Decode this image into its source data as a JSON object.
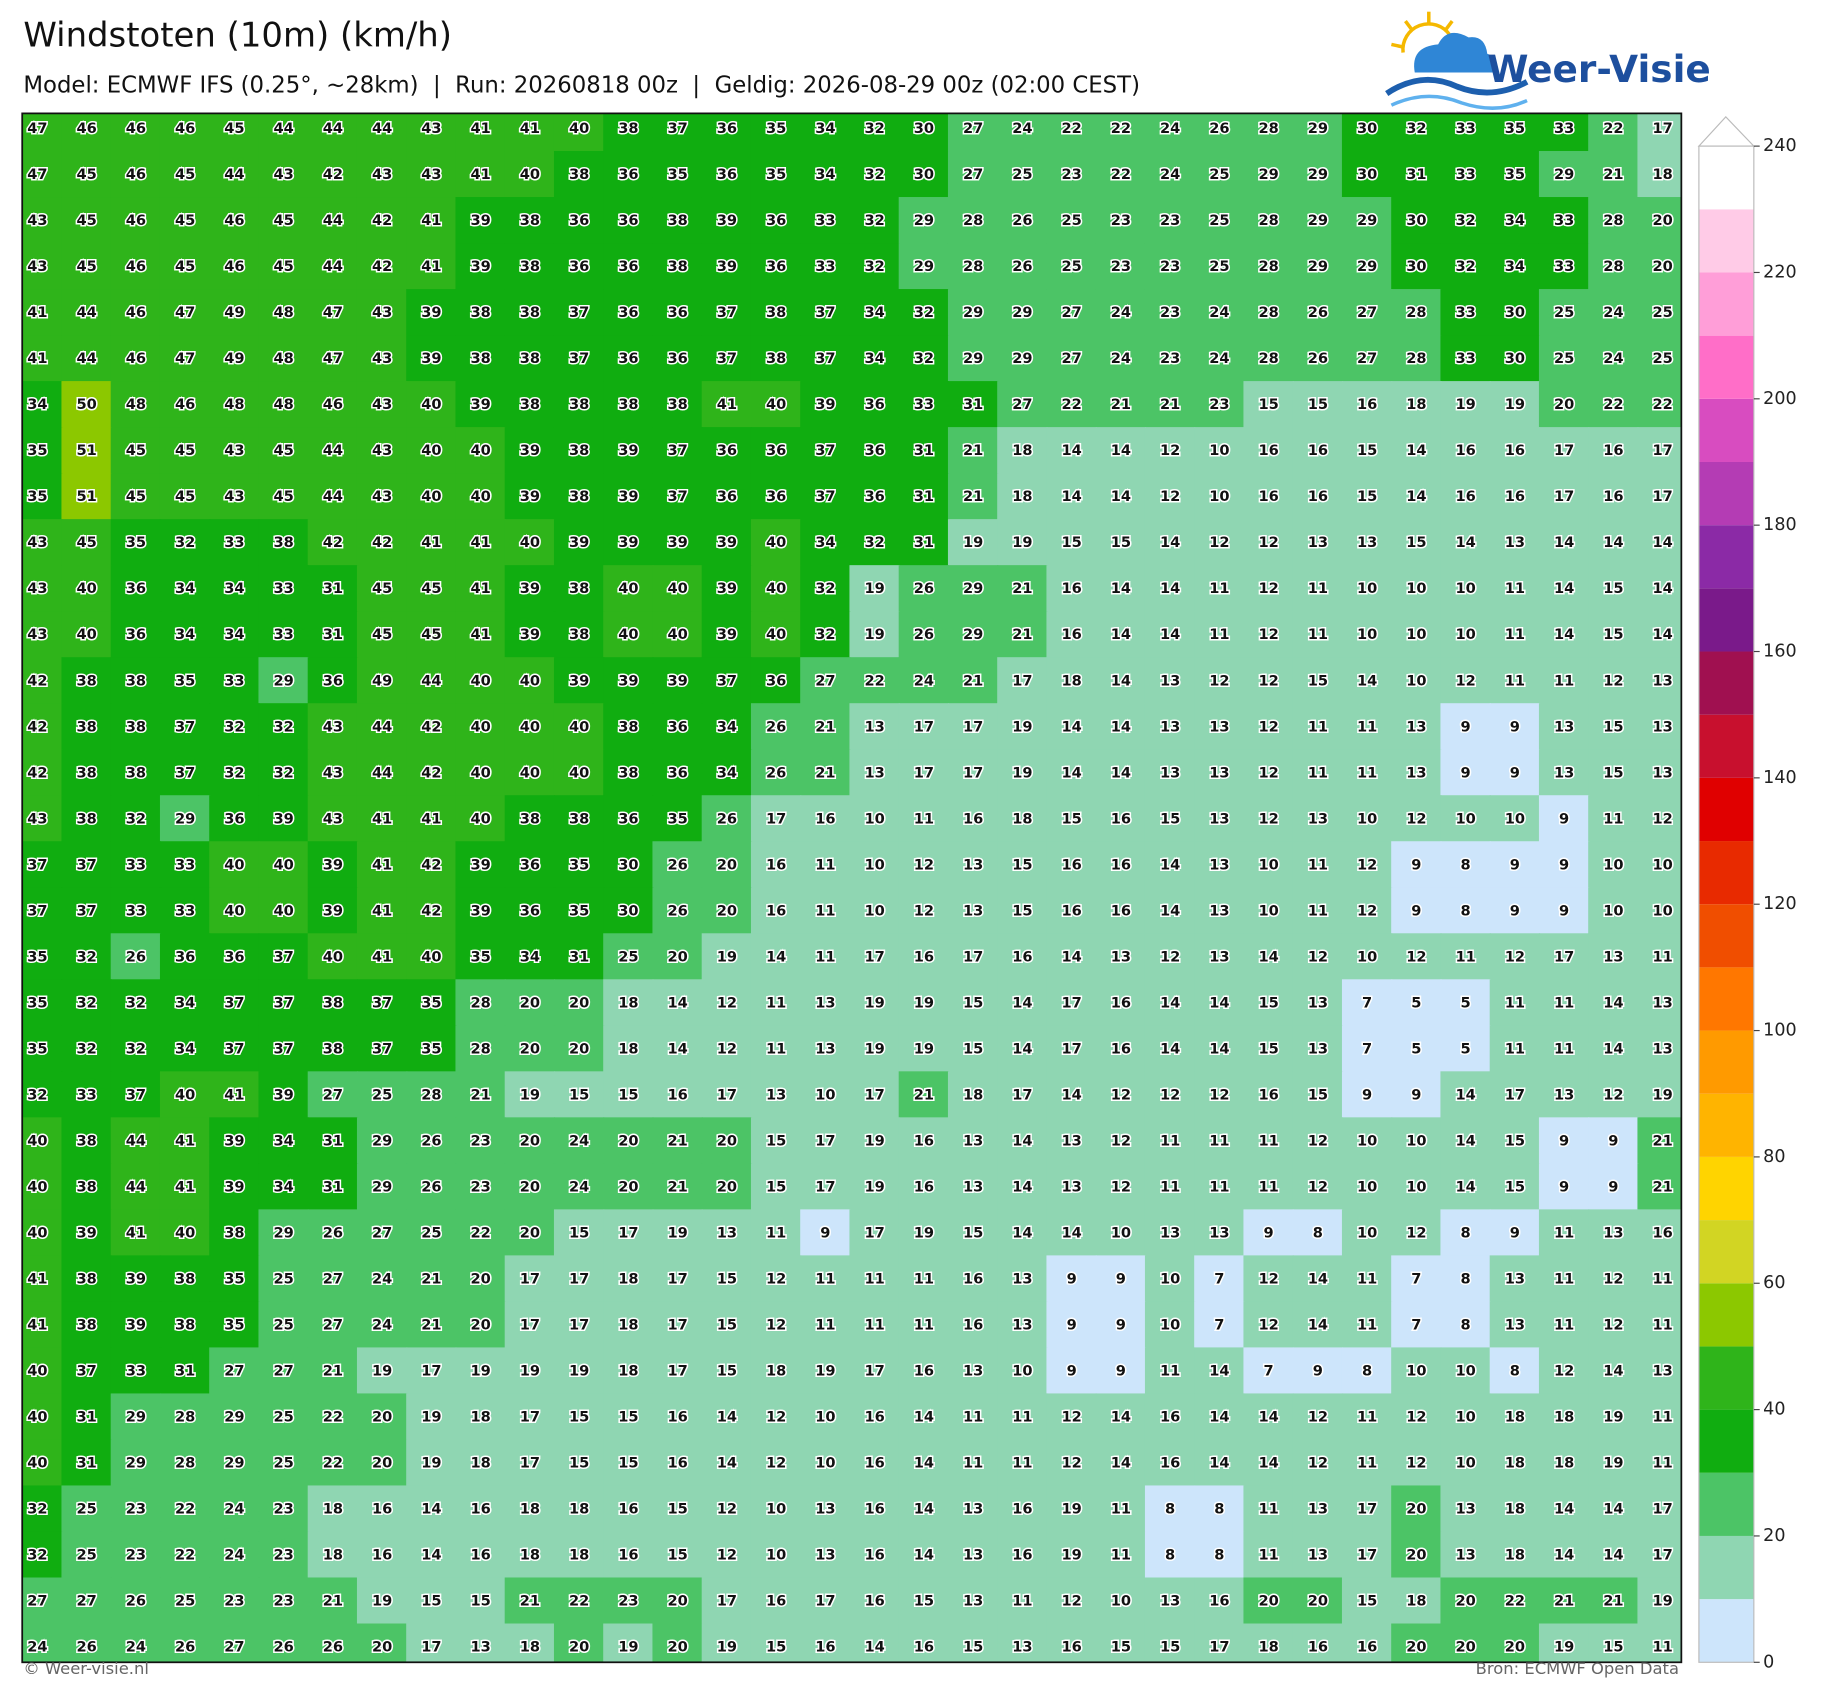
{
  "header": {
    "title": "Windstoten (10m) (km/h)",
    "subtitle": "Model: ECMWF IFS (0.25°, ~28km)  |  Run: 20260818 00z  |  Geldig: 2026-08-29 00z (02:00 CEST)"
  },
  "logo": {
    "text": "Weer-Visie"
  },
  "grid": {
    "rows": [
      [
        47,
        46,
        46,
        46,
        45,
        44,
        44,
        44,
        43,
        41,
        41,
        40,
        38,
        37,
        36,
        35,
        34,
        32,
        30,
        27,
        24,
        22,
        22,
        24,
        26,
        28,
        29,
        30,
        32,
        33,
        35,
        33,
        22,
        17
      ],
      [
        47,
        45,
        46,
        45,
        44,
        43,
        42,
        43,
        43,
        41,
        40,
        38,
        36,
        35,
        36,
        35,
        34,
        32,
        30,
        27,
        25,
        23,
        22,
        24,
        25,
        29,
        29,
        30,
        31,
        33,
        35,
        29,
        21,
        18
      ],
      [
        43,
        45,
        46,
        45,
        46,
        45,
        44,
        42,
        41,
        39,
        38,
        36,
        36,
        38,
        39,
        36,
        33,
        32,
        29,
        28,
        26,
        25,
        23,
        23,
        25,
        28,
        29,
        29,
        30,
        32,
        34,
        33,
        28,
        20
      ],
      [
        43,
        45,
        46,
        45,
        46,
        45,
        44,
        42,
        41,
        39,
        38,
        36,
        36,
        38,
        39,
        36,
        33,
        32,
        29,
        28,
        26,
        25,
        23,
        23,
        25,
        28,
        29,
        29,
        30,
        32,
        34,
        33,
        28,
        20
      ],
      [
        41,
        44,
        46,
        47,
        49,
        48,
        47,
        43,
        39,
        38,
        38,
        37,
        36,
        36,
        37,
        38,
        37,
        34,
        32,
        29,
        29,
        27,
        24,
        23,
        24,
        28,
        26,
        27,
        28,
        33,
        30,
        25,
        24,
        25
      ],
      [
        41,
        44,
        46,
        47,
        49,
        48,
        47,
        43,
        39,
        38,
        38,
        37,
        36,
        36,
        37,
        38,
        37,
        34,
        32,
        29,
        29,
        27,
        24,
        23,
        24,
        28,
        26,
        27,
        28,
        33,
        30,
        25,
        24,
        25
      ],
      [
        34,
        50,
        48,
        46,
        48,
        48,
        46,
        43,
        40,
        39,
        38,
        38,
        38,
        38,
        41,
        40,
        39,
        36,
        33,
        31,
        27,
        22,
        21,
        21,
        23,
        15,
        15,
        16,
        18,
        19,
        19,
        20,
        22,
        22
      ],
      [
        35,
        51,
        45,
        45,
        43,
        45,
        44,
        43,
        40,
        40,
        39,
        38,
        39,
        37,
        36,
        36,
        37,
        36,
        31,
        21,
        18,
        14,
        14,
        12,
        10,
        16,
        16,
        15,
        14,
        16,
        16,
        17,
        16,
        17
      ],
      [
        35,
        51,
        45,
        45,
        43,
        45,
        44,
        43,
        40,
        40,
        39,
        38,
        39,
        37,
        36,
        36,
        37,
        36,
        31,
        21,
        18,
        14,
        14,
        12,
        10,
        16,
        16,
        15,
        14,
        16,
        16,
        17,
        16,
        17
      ],
      [
        43,
        45,
        35,
        32,
        33,
        38,
        42,
        42,
        41,
        41,
        40,
        39,
        39,
        39,
        39,
        40,
        34,
        32,
        31,
        19,
        19,
        15,
        15,
        14,
        12,
        12,
        13,
        13,
        15,
        14,
        13,
        14,
        14,
        14
      ],
      [
        43,
        40,
        36,
        34,
        34,
        33,
        31,
        45,
        45,
        41,
        39,
        38,
        40,
        40,
        39,
        40,
        32,
        19,
        26,
        29,
        21,
        16,
        14,
        14,
        11,
        12,
        11,
        10,
        10,
        10,
        11,
        14,
        15,
        14
      ],
      [
        43,
        40,
        36,
        34,
        34,
        33,
        31,
        45,
        45,
        41,
        39,
        38,
        40,
        40,
        39,
        40,
        32,
        19,
        26,
        29,
        21,
        16,
        14,
        14,
        11,
        12,
        11,
        10,
        10,
        10,
        11,
        14,
        15,
        14
      ],
      [
        42,
        38,
        38,
        35,
        33,
        29,
        36,
        49,
        44,
        40,
        40,
        39,
        39,
        39,
        37,
        36,
        27,
        22,
        24,
        21,
        17,
        18,
        14,
        13,
        12,
        12,
        15,
        14,
        10,
        12,
        11,
        11,
        12,
        13
      ],
      [
        42,
        38,
        38,
        37,
        32,
        32,
        43,
        44,
        42,
        40,
        40,
        40,
        38,
        36,
        34,
        26,
        21,
        13,
        17,
        17,
        19,
        14,
        14,
        13,
        13,
        12,
        11,
        11,
        13,
        9,
        9,
        13,
        15,
        13
      ],
      [
        42,
        38,
        38,
        37,
        32,
        32,
        43,
        44,
        42,
        40,
        40,
        40,
        38,
        36,
        34,
        26,
        21,
        13,
        17,
        17,
        19,
        14,
        14,
        13,
        13,
        12,
        11,
        11,
        13,
        9,
        9,
        13,
        15,
        13
      ],
      [
        43,
        38,
        32,
        29,
        36,
        39,
        43,
        41,
        41,
        40,
        38,
        38,
        36,
        35,
        26,
        17,
        16,
        10,
        11,
        16,
        18,
        15,
        16,
        15,
        13,
        12,
        13,
        10,
        12,
        10,
        10,
        9,
        11,
        12
      ],
      [
        37,
        37,
        33,
        33,
        40,
        40,
        39,
        41,
        42,
        39,
        36,
        35,
        30,
        26,
        20,
        16,
        11,
        10,
        12,
        13,
        15,
        16,
        16,
        14,
        13,
        10,
        11,
        12,
        9,
        8,
        9,
        9,
        10,
        10
      ],
      [
        37,
        37,
        33,
        33,
        40,
        40,
        39,
        41,
        42,
        39,
        36,
        35,
        30,
        26,
        20,
        16,
        11,
        10,
        12,
        13,
        15,
        16,
        16,
        14,
        13,
        10,
        11,
        12,
        9,
        8,
        9,
        9,
        10,
        10
      ],
      [
        35,
        32,
        26,
        36,
        36,
        37,
        40,
        41,
        40,
        35,
        34,
        31,
        25,
        20,
        19,
        14,
        11,
        17,
        16,
        17,
        16,
        14,
        13,
        12,
        13,
        14,
        12,
        10,
        12,
        11,
        12,
        17,
        13,
        11
      ],
      [
        35,
        32,
        32,
        34,
        37,
        37,
        38,
        37,
        35,
        28,
        20,
        20,
        18,
        14,
        12,
        11,
        13,
        19,
        19,
        15,
        14,
        17,
        16,
        14,
        14,
        15,
        13,
        7,
        5,
        5,
        11,
        11,
        14,
        13
      ],
      [
        35,
        32,
        32,
        34,
        37,
        37,
        38,
        37,
        35,
        28,
        20,
        20,
        18,
        14,
        12,
        11,
        13,
        19,
        19,
        15,
        14,
        17,
        16,
        14,
        14,
        15,
        13,
        7,
        5,
        5,
        11,
        11,
        14,
        13
      ],
      [
        32,
        33,
        37,
        40,
        41,
        39,
        27,
        25,
        28,
        21,
        19,
        15,
        15,
        16,
        17,
        13,
        10,
        17,
        21,
        18,
        17,
        14,
        12,
        12,
        12,
        16,
        15,
        9,
        9,
        14,
        17,
        13,
        12,
        19
      ],
      [
        40,
        38,
        44,
        41,
        39,
        34,
        31,
        29,
        26,
        23,
        20,
        24,
        20,
        21,
        20,
        15,
        17,
        19,
        16,
        13,
        14,
        13,
        12,
        11,
        11,
        11,
        12,
        10,
        10,
        14,
        15,
        9,
        9,
        21
      ],
      [
        40,
        38,
        44,
        41,
        39,
        34,
        31,
        29,
        26,
        23,
        20,
        24,
        20,
        21,
        20,
        15,
        17,
        19,
        16,
        13,
        14,
        13,
        12,
        11,
        11,
        11,
        12,
        10,
        10,
        14,
        15,
        9,
        9,
        21
      ],
      [
        40,
        39,
        41,
        40,
        38,
        29,
        26,
        27,
        25,
        22,
        20,
        15,
        17,
        19,
        13,
        11,
        9,
        17,
        19,
        15,
        14,
        14,
        10,
        13,
        13,
        9,
        8,
        10,
        12,
        8,
        9,
        11,
        13,
        16
      ],
      [
        41,
        38,
        39,
        38,
        35,
        25,
        27,
        24,
        21,
        20,
        17,
        17,
        18,
        17,
        15,
        12,
        11,
        11,
        11,
        16,
        13,
        9,
        9,
        10,
        7,
        12,
        14,
        11,
        7,
        8,
        13,
        11,
        12,
        11
      ],
      [
        41,
        38,
        39,
        38,
        35,
        25,
        27,
        24,
        21,
        20,
        17,
        17,
        18,
        17,
        15,
        12,
        11,
        11,
        11,
        16,
        13,
        9,
        9,
        10,
        7,
        12,
        14,
        11,
        7,
        8,
        13,
        11,
        12,
        11
      ],
      [
        40,
        37,
        33,
        31,
        27,
        27,
        21,
        19,
        17,
        19,
        19,
        19,
        18,
        17,
        15,
        18,
        19,
        17,
        16,
        13,
        10,
        9,
        9,
        11,
        14,
        7,
        9,
        8,
        10,
        10,
        8,
        12,
        14,
        13
      ],
      [
        40,
        31,
        29,
        28,
        29,
        25,
        22,
        20,
        19,
        18,
        17,
        15,
        15,
        16,
        14,
        12,
        10,
        16,
        14,
        11,
        11,
        12,
        14,
        16,
        14,
        14,
        12,
        11,
        12,
        10,
        18,
        18,
        19,
        11
      ],
      [
        40,
        31,
        29,
        28,
        29,
        25,
        22,
        20,
        19,
        18,
        17,
        15,
        15,
        16,
        14,
        12,
        10,
        16,
        14,
        11,
        11,
        12,
        14,
        16,
        14,
        14,
        12,
        11,
        12,
        10,
        18,
        18,
        19,
        11
      ],
      [
        32,
        25,
        23,
        22,
        24,
        23,
        18,
        16,
        14,
        16,
        18,
        18,
        16,
        15,
        12,
        10,
        13,
        16,
        14,
        13,
        16,
        19,
        11,
        8,
        8,
        11,
        13,
        17,
        20,
        13,
        18,
        14,
        14,
        17
      ],
      [
        32,
        25,
        23,
        22,
        24,
        23,
        18,
        16,
        14,
        16,
        18,
        18,
        16,
        15,
        12,
        10,
        13,
        16,
        14,
        13,
        16,
        19,
        11,
        8,
        8,
        11,
        13,
        17,
        20,
        13,
        18,
        14,
        14,
        17
      ],
      [
        27,
        27,
        26,
        25,
        23,
        23,
        21,
        19,
        15,
        15,
        21,
        22,
        23,
        20,
        17,
        16,
        17,
        16,
        15,
        13,
        11,
        12,
        10,
        13,
        16,
        20,
        20,
        15,
        18,
        20,
        22,
        21,
        21,
        19
      ],
      [
        24,
        26,
        24,
        26,
        27,
        26,
        26,
        20,
        17,
        13,
        18,
        20,
        19,
        20,
        19,
        15,
        16,
        14,
        16,
        15,
        13,
        16,
        15,
        15,
        17,
        18,
        16,
        16,
        20,
        20,
        20,
        19,
        15,
        11
      ]
    ]
  },
  "colorbar": {
    "ticks": [
      0,
      20,
      40,
      60,
      80,
      100,
      120,
      140,
      160,
      180,
      200,
      220,
      240
    ],
    "bounds": [
      0,
      10,
      20,
      30,
      40,
      50,
      60,
      70,
      80,
      90,
      100,
      110,
      120,
      130,
      140,
      150,
      160,
      170,
      180,
      190,
      200,
      210,
      220,
      230,
      240
    ],
    "colors": [
      "#cde5fb",
      "#8fd6b2",
      "#4cc466",
      "#10ad10",
      "#2fb41a",
      "#8cc800",
      "#d2d523",
      "#ffd400",
      "#ffb400",
      "#ff9a00",
      "#ff7700",
      "#f04e00",
      "#e82a00",
      "#e00000",
      "#c8102e",
      "#a01050",
      "#7a1a8a",
      "#8b2aa6",
      "#b43cb4",
      "#d84cc0",
      "#ff6ec8",
      "#ff9ed8",
      "#ffcbe7",
      "#ffffff"
    ]
  },
  "footer": {
    "left": "© Weer-visie.nl",
    "right": "Bron: ECMWF Open Data"
  }
}
